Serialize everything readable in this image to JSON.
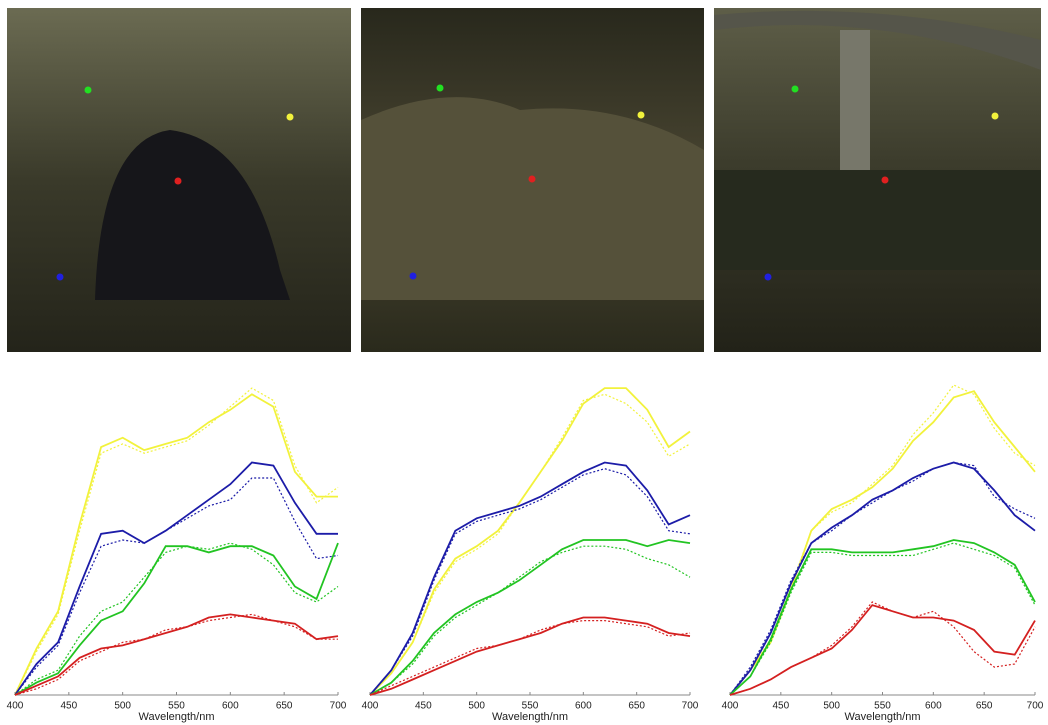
{
  "chart_data": [
    {
      "type": "line",
      "xlabel": "Wavelength/nm",
      "x": [
        400,
        420,
        440,
        460,
        480,
        500,
        520,
        540,
        560,
        580,
        600,
        620,
        640,
        660,
        680,
        700
      ],
      "xlim": [
        400,
        700
      ],
      "xticks": [
        400,
        450,
        500,
        550,
        600,
        650,
        700
      ],
      "ylim": [
        0,
        1
      ],
      "series": [
        {
          "color": "#f2f23c",
          "dashed": false,
          "values": [
            0,
            0.15,
            0.27,
            0.55,
            0.8,
            0.83,
            0.79,
            0.81,
            0.83,
            0.88,
            0.92,
            0.97,
            0.93,
            0.72,
            0.64,
            0.64
          ]
        },
        {
          "color": "#f2f23c",
          "dashed": true,
          "values": [
            0,
            0.14,
            0.26,
            0.53,
            0.78,
            0.81,
            0.78,
            0.8,
            0.82,
            0.87,
            0.93,
            0.99,
            0.95,
            0.74,
            0.62,
            0.67
          ]
        },
        {
          "color": "#1c1ca8",
          "dashed": false,
          "values": [
            0,
            0.1,
            0.17,
            0.35,
            0.52,
            0.53,
            0.49,
            0.53,
            0.58,
            0.63,
            0.68,
            0.75,
            0.74,
            0.62,
            0.52,
            0.52
          ]
        },
        {
          "color": "#1c1ca8",
          "dashed": true,
          "values": [
            0,
            0.09,
            0.16,
            0.33,
            0.48,
            0.5,
            0.49,
            0.53,
            0.57,
            0.61,
            0.63,
            0.7,
            0.7,
            0.56,
            0.44,
            0.45
          ]
        },
        {
          "color": "#22c422",
          "dashed": false,
          "values": [
            0,
            0.04,
            0.07,
            0.16,
            0.24,
            0.27,
            0.36,
            0.48,
            0.48,
            0.46,
            0.48,
            0.48,
            0.45,
            0.35,
            0.31,
            0.49
          ]
        },
        {
          "color": "#22c422",
          "dashed": true,
          "values": [
            0,
            0.05,
            0.08,
            0.19,
            0.27,
            0.3,
            0.38,
            0.46,
            0.48,
            0.47,
            0.49,
            0.47,
            0.42,
            0.33,
            0.3,
            0.35
          ]
        },
        {
          "color": "#d42020",
          "dashed": false,
          "values": [
            0,
            0.03,
            0.06,
            0.12,
            0.15,
            0.16,
            0.18,
            0.2,
            0.22,
            0.25,
            0.26,
            0.25,
            0.24,
            0.23,
            0.18,
            0.19
          ]
        },
        {
          "color": "#d42020",
          "dashed": true,
          "values": [
            0,
            0.02,
            0.05,
            0.11,
            0.14,
            0.17,
            0.18,
            0.21,
            0.22,
            0.24,
            0.25,
            0.26,
            0.24,
            0.22,
            0.18,
            0.18
          ]
        }
      ]
    },
    {
      "type": "line",
      "xlabel": "Wavelength/nm",
      "x": [
        400,
        420,
        440,
        460,
        480,
        500,
        520,
        540,
        560,
        580,
        600,
        620,
        640,
        660,
        680,
        700
      ],
      "xlim": [
        400,
        700
      ],
      "xticks": [
        400,
        450,
        500,
        550,
        600,
        650,
        700
      ],
      "ylim": [
        0,
        1
      ],
      "series": [
        {
          "color": "#f2f23c",
          "dashed": false,
          "values": [
            0,
            0.07,
            0.17,
            0.34,
            0.44,
            0.48,
            0.53,
            0.62,
            0.72,
            0.82,
            0.94,
            0.99,
            0.99,
            0.92,
            0.8,
            0.85
          ]
        },
        {
          "color": "#f2f23c",
          "dashed": true,
          "values": [
            0,
            0.07,
            0.17,
            0.33,
            0.43,
            0.47,
            0.52,
            0.62,
            0.72,
            0.83,
            0.95,
            0.97,
            0.94,
            0.88,
            0.77,
            0.81
          ]
        },
        {
          "color": "#1c1ca8",
          "dashed": false,
          "values": [
            0,
            0.08,
            0.2,
            0.38,
            0.53,
            0.57,
            0.59,
            0.61,
            0.64,
            0.68,
            0.72,
            0.75,
            0.74,
            0.66,
            0.55,
            0.58
          ]
        },
        {
          "color": "#1c1ca8",
          "dashed": true,
          "values": [
            0,
            0.08,
            0.19,
            0.37,
            0.52,
            0.56,
            0.58,
            0.6,
            0.63,
            0.67,
            0.71,
            0.73,
            0.71,
            0.64,
            0.53,
            0.52
          ]
        },
        {
          "color": "#22c422",
          "dashed": false,
          "values": [
            0,
            0.04,
            0.11,
            0.2,
            0.26,
            0.3,
            0.33,
            0.37,
            0.42,
            0.47,
            0.5,
            0.5,
            0.5,
            0.48,
            0.5,
            0.49
          ]
        },
        {
          "color": "#22c422",
          "dashed": true,
          "values": [
            0,
            0.04,
            0.1,
            0.19,
            0.25,
            0.29,
            0.33,
            0.38,
            0.43,
            0.46,
            0.48,
            0.48,
            0.47,
            0.44,
            0.42,
            0.38
          ]
        },
        {
          "color": "#d42020",
          "dashed": false,
          "values": [
            0,
            0.02,
            0.05,
            0.08,
            0.11,
            0.14,
            0.16,
            0.18,
            0.2,
            0.23,
            0.25,
            0.25,
            0.24,
            0.23,
            0.2,
            0.19
          ]
        },
        {
          "color": "#d42020",
          "dashed": true,
          "values": [
            0,
            0.03,
            0.06,
            0.09,
            0.12,
            0.15,
            0.16,
            0.18,
            0.21,
            0.23,
            0.24,
            0.24,
            0.23,
            0.22,
            0.19,
            0.2
          ]
        }
      ]
    },
    {
      "type": "line",
      "xlabel": "Wavelength/nm",
      "x": [
        400,
        420,
        440,
        460,
        480,
        500,
        520,
        540,
        560,
        580,
        600,
        620,
        640,
        660,
        680,
        700
      ],
      "xlim": [
        400,
        700
      ],
      "xticks": [
        400,
        450,
        500,
        550,
        600,
        650,
        700
      ],
      "ylim": [
        0,
        1
      ],
      "series": [
        {
          "color": "#f2f23c",
          "dashed": false,
          "values": [
            0,
            0.08,
            0.17,
            0.34,
            0.53,
            0.6,
            0.63,
            0.67,
            0.73,
            0.82,
            0.88,
            0.96,
            0.98,
            0.88,
            0.8,
            0.72
          ]
        },
        {
          "color": "#f2f23c",
          "dashed": true,
          "values": [
            0,
            0.08,
            0.18,
            0.35,
            0.53,
            0.59,
            0.62,
            0.68,
            0.74,
            0.84,
            0.91,
            1.0,
            0.97,
            0.86,
            0.78,
            0.74
          ]
        },
        {
          "color": "#1c1ca8",
          "dashed": false,
          "values": [
            0,
            0.08,
            0.2,
            0.36,
            0.49,
            0.54,
            0.58,
            0.63,
            0.66,
            0.7,
            0.73,
            0.75,
            0.73,
            0.66,
            0.58,
            0.53
          ]
        },
        {
          "color": "#1c1ca8",
          "dashed": true,
          "values": [
            0,
            0.09,
            0.21,
            0.37,
            0.49,
            0.53,
            0.58,
            0.62,
            0.66,
            0.69,
            0.73,
            0.75,
            0.74,
            0.64,
            0.6,
            0.57
          ]
        },
        {
          "color": "#22c422",
          "dashed": false,
          "values": [
            0,
            0.06,
            0.18,
            0.34,
            0.47,
            0.47,
            0.46,
            0.46,
            0.46,
            0.47,
            0.48,
            0.5,
            0.49,
            0.46,
            0.42,
            0.3
          ]
        },
        {
          "color": "#22c422",
          "dashed": true,
          "values": [
            0,
            0.06,
            0.17,
            0.33,
            0.46,
            0.46,
            0.45,
            0.45,
            0.45,
            0.45,
            0.47,
            0.49,
            0.47,
            0.45,
            0.41,
            0.29
          ]
        },
        {
          "color": "#d42020",
          "dashed": false,
          "values": [
            0,
            0.02,
            0.05,
            0.09,
            0.12,
            0.15,
            0.21,
            0.29,
            0.27,
            0.25,
            0.25,
            0.24,
            0.21,
            0.14,
            0.13,
            0.24
          ]
        },
        {
          "color": "#d42020",
          "dashed": true,
          "values": [
            0,
            0.02,
            0.05,
            0.09,
            0.12,
            0.16,
            0.22,
            0.3,
            0.27,
            0.25,
            0.27,
            0.22,
            0.14,
            0.09,
            0.1,
            0.22
          ]
        }
      ]
    }
  ]
}
